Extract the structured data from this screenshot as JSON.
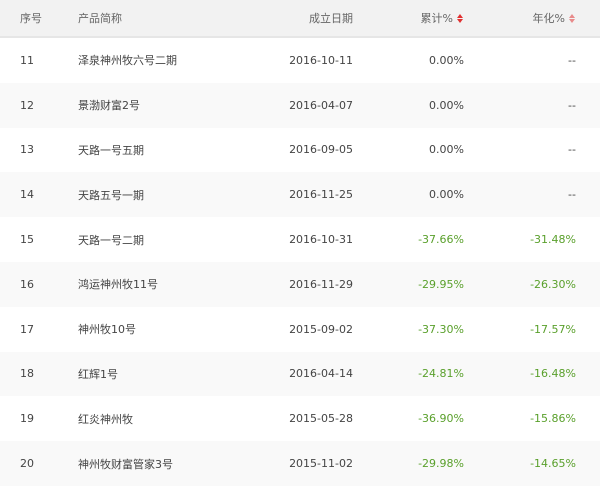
{
  "header": {
    "index": "序号",
    "name": "产品简称",
    "date": "成立日期",
    "cumulative": "累计%",
    "annualized": "年化%"
  },
  "colors": {
    "negative": "#5aa02c",
    "sort_active": "#e03030",
    "sort_inactive": "#e88a8a"
  },
  "rows": [
    {
      "index": "11",
      "name": "泽泉神州牧六号二期",
      "date": "2016-10-11",
      "cumulative": "0.00%",
      "annualized": "--"
    },
    {
      "index": "12",
      "name": "景渤财富2号",
      "date": "2016-04-07",
      "cumulative": "0.00%",
      "annualized": "--"
    },
    {
      "index": "13",
      "name": "天路一号五期",
      "date": "2016-09-05",
      "cumulative": "0.00%",
      "annualized": "--"
    },
    {
      "index": "14",
      "name": "天路五号一期",
      "date": "2016-11-25",
      "cumulative": "0.00%",
      "annualized": "--"
    },
    {
      "index": "15",
      "name": "天路一号二期",
      "date": "2016-10-31",
      "cumulative": "-37.66%",
      "annualized": "-31.48%"
    },
    {
      "index": "16",
      "name": "鸿运神州牧11号",
      "date": "2016-11-29",
      "cumulative": "-29.95%",
      "annualized": "-26.30%"
    },
    {
      "index": "17",
      "name": "神州牧10号",
      "date": "2015-09-02",
      "cumulative": "-37.30%",
      "annualized": "-17.57%"
    },
    {
      "index": "18",
      "name": "红辉1号",
      "date": "2016-04-14",
      "cumulative": "-24.81%",
      "annualized": "-16.48%"
    },
    {
      "index": "19",
      "name": "红炎神州牧",
      "date": "2015-05-28",
      "cumulative": "-36.90%",
      "annualized": "-15.86%"
    },
    {
      "index": "20",
      "name": "神州牧财富管家3号",
      "date": "2015-11-02",
      "cumulative": "-29.98%",
      "annualized": "-14.65%"
    }
  ]
}
